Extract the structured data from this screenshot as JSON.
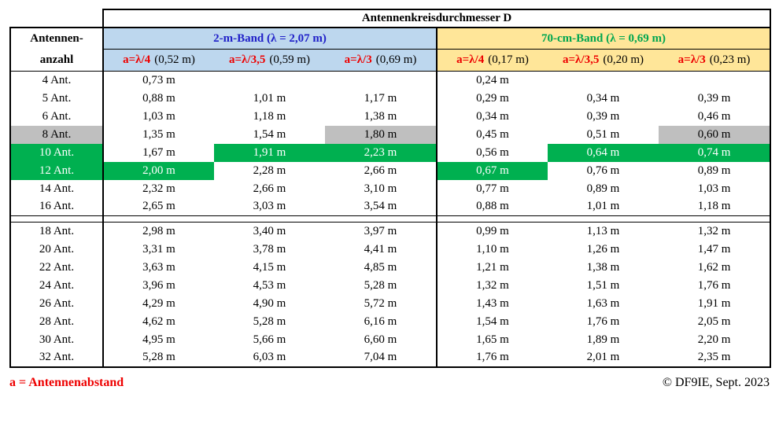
{
  "title": "Antennenkreisdurchmesser D",
  "row_header": {
    "line1": "Antennen-",
    "line2": "anzahl"
  },
  "bands": [
    {
      "label": "2-m-Band (λ = 2,07 m)",
      "subheaders": [
        {
          "red": "a=λ/4",
          "rest": "(0,52 m)"
        },
        {
          "red": "a=λ/3,5",
          "rest": "(0,59 m)"
        },
        {
          "red": "a=λ/3",
          "rest": "(0,69 m)"
        }
      ]
    },
    {
      "label": "70-cm-Band (λ = 0,69 m)",
      "subheaders": [
        {
          "red": "a=λ/4",
          "rest": "(0,17 m)"
        },
        {
          "red": "a=λ/3,5",
          "rest": "(0,20 m)"
        },
        {
          "red": "a=λ/3",
          "rest": "(0,23 m)"
        }
      ]
    }
  ],
  "row_groups": [
    [
      {
        "label": "4 Ant.",
        "cells": [
          "0,73 m",
          "",
          "",
          "0,24 m",
          "",
          ""
        ]
      },
      {
        "label": "5 Ant.",
        "cells": [
          "0,88 m",
          "1,01 m",
          "1,17 m",
          "0,29 m",
          "0,34 m",
          "0,39 m"
        ]
      },
      {
        "label": "6 Ant.",
        "cells": [
          "1,03 m",
          "1,18 m",
          "1,38 m",
          "0,34 m",
          "0,39 m",
          "0,46 m"
        ]
      },
      {
        "label": "8 Ant.",
        "label_hl": "gray",
        "cells": [
          "1,35 m",
          "1,54 m",
          "1,80 m",
          "0,45 m",
          "0,51 m",
          "0,60 m"
        ],
        "hl": [
          "",
          "",
          "gray",
          "",
          "",
          "gray"
        ]
      },
      {
        "label": "10 Ant.",
        "label_hl": "green",
        "cells": [
          "1,67 m",
          "1,91 m",
          "2,23 m",
          "0,56 m",
          "0,64 m",
          "0,74 m"
        ],
        "hl": [
          "",
          "green",
          "green",
          "",
          "green",
          "green"
        ]
      },
      {
        "label": "12 Ant.",
        "label_hl": "green",
        "cells": [
          "2,00 m",
          "2,28 m",
          "2,66 m",
          "0,67 m",
          "0,76 m",
          "0,89 m"
        ],
        "hl": [
          "green",
          "",
          "",
          "green",
          "",
          ""
        ]
      },
      {
        "label": "14 Ant.",
        "cells": [
          "2,32 m",
          "2,66 m",
          "3,10 m",
          "0,77 m",
          "0,89 m",
          "1,03 m"
        ]
      },
      {
        "label": "16 Ant.",
        "cells": [
          "2,65 m",
          "3,03 m",
          "3,54 m",
          "0,88 m",
          "1,01 m",
          "1,18 m"
        ]
      }
    ],
    [
      {
        "label": "18 Ant.",
        "cells": [
          "2,98 m",
          "3,40 m",
          "3,97 m",
          "0,99 m",
          "1,13 m",
          "1,32 m"
        ]
      },
      {
        "label": "20 Ant.",
        "cells": [
          "3,31 m",
          "3,78 m",
          "4,41 m",
          "1,10 m",
          "1,26 m",
          "1,47 m"
        ]
      },
      {
        "label": "22 Ant.",
        "cells": [
          "3,63 m",
          "4,15 m",
          "4,85 m",
          "1,21 m",
          "1,38 m",
          "1,62 m"
        ]
      },
      {
        "label": "24 Ant.",
        "cells": [
          "3,96 m",
          "4,53 m",
          "5,28 m",
          "1,32 m",
          "1,51 m",
          "1,76 m"
        ]
      },
      {
        "label": "26 Ant.",
        "cells": [
          "4,29 m",
          "4,90 m",
          "5,72 m",
          "1,43 m",
          "1,63 m",
          "1,91 m"
        ]
      },
      {
        "label": "28 Ant.",
        "cells": [
          "4,62 m",
          "5,28 m",
          "6,16 m",
          "1,54 m",
          "1,76 m",
          "2,05 m"
        ]
      },
      {
        "label": "30 Ant.",
        "cells": [
          "4,95 m",
          "5,66 m",
          "6,60 m",
          "1,65 m",
          "1,89 m",
          "2,20 m"
        ]
      },
      {
        "label": "32 Ant.",
        "cells": [
          "5,28 m",
          "6,03 m",
          "7,04 m",
          "1,76 m",
          "2,01 m",
          "2,35 m"
        ]
      }
    ]
  ],
  "footer": {
    "left": "a = Antennenabstand",
    "right": "© DF9IE, Sept. 2023"
  },
  "colors": {
    "band-2m-text": "#2020C8",
    "band-70cm-text": "#00A650",
    "accent-red": "#EE0000",
    "highlight-gray": "#BFBFBF",
    "highlight-green": "#00B050",
    "band-2m-bg": "#BDD7EE",
    "band-70cm-bg": "#FFE699"
  }
}
